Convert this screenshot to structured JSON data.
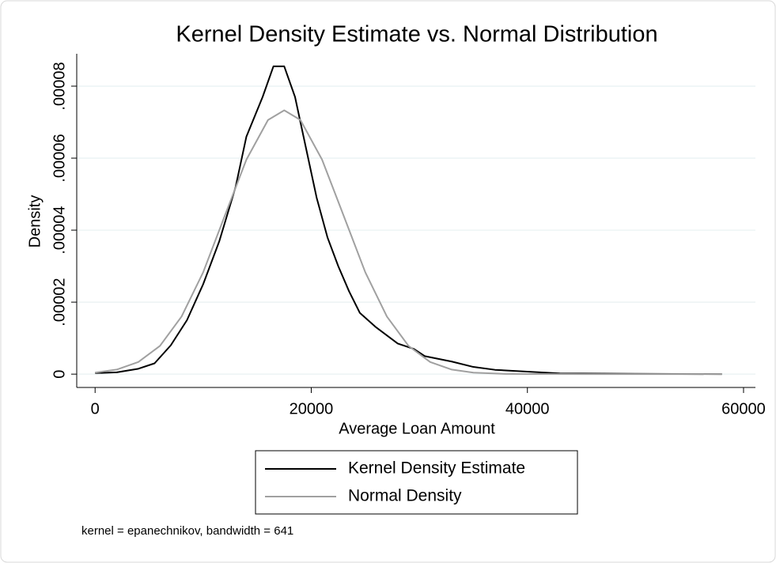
{
  "chart_data": {
    "type": "line",
    "title": "Kernel Density Estimate vs. Normal Distribution",
    "x_label": "Average Loan Amount",
    "y_label": "Density",
    "note": "kernel = epanechnikov, bandwidth = 641",
    "xlim": [
      -1700,
      61100
    ],
    "ylim": [
      -3.7e-06,
      8.9e-05
    ],
    "xticks": [
      0,
      20000,
      40000,
      60000
    ],
    "yticks": [
      0,
      {
        "value": 2e-05,
        "label": ".00002"
      },
      {
        "value": 4e-05,
        "label": ".00004"
      },
      {
        "value": 6e-05,
        "label": ".00006"
      },
      {
        "value": 8e-05,
        "label": ".00008"
      }
    ],
    "grid": true,
    "legend": "bottom",
    "series": [
      {
        "name": "Kernel Density Estimate",
        "color": "#000000",
        "x": [
          0,
          2000,
          4000,
          5500,
          7000,
          8500,
          10000,
          11500,
          13000,
          14000,
          15500,
          16500,
          17500,
          18500,
          19500,
          20500,
          21500,
          22500,
          23500,
          24500,
          26000,
          28000,
          29500,
          30500,
          33000,
          35000,
          37000,
          40000,
          43000,
          50000,
          58000
        ],
        "values": [
          3e-07,
          5e-07,
          1.5e-06,
          3e-06,
          8e-06,
          1.5e-05,
          2.5e-05,
          3.7e-05,
          5.2e-05,
          6.6e-05,
          7.7e-05,
          8.55e-05,
          8.55e-05,
          7.7e-05,
          6.3e-05,
          4.9e-05,
          3.8e-05,
          3e-05,
          2.3e-05,
          1.7e-05,
          1.3e-05,
          8.5e-06,
          7e-06,
          5e-06,
          3.5e-06,
          2e-06,
          1.2e-06,
          7e-07,
          2e-07,
          1e-07,
          0
        ]
      },
      {
        "name": "Normal Density",
        "color": "#a0a0a0",
        "x": [
          0,
          2000,
          4000,
          6000,
          8000,
          10000,
          12000,
          14000,
          16000,
          17500,
          19000,
          21000,
          23000,
          25000,
          27000,
          29000,
          31000,
          33000,
          35000,
          38000,
          45000,
          58000
        ],
        "values": [
          4.2e-07,
          1.26e-06,
          3.37e-06,
          7.85e-06,
          1.6e-05,
          2.83e-05,
          4.4e-05,
          5.96e-05,
          7.06e-05,
          7.33e-05,
          7.06e-05,
          5.96e-05,
          4.4e-05,
          2.83e-05,
          1.6e-05,
          7.85e-06,
          3.37e-06,
          1.26e-06,
          4.2e-07,
          6e-08,
          0,
          0
        ]
      }
    ]
  }
}
